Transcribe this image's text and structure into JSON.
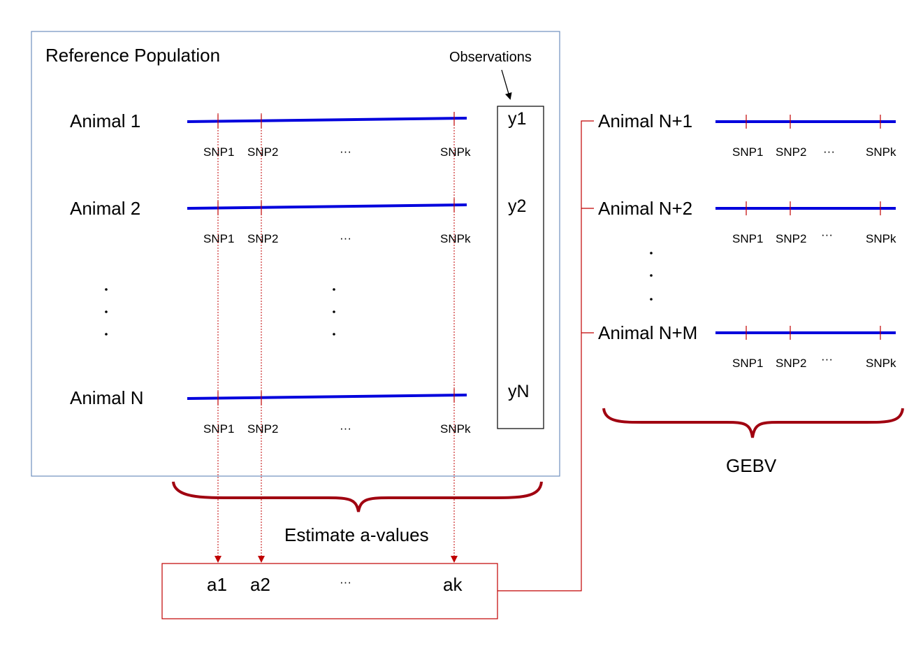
{
  "reference": {
    "title": "Reference Population",
    "observations_label": "Observations",
    "animals": [
      {
        "label": "Animal 1",
        "obs": "y1"
      },
      {
        "label": "Animal 2",
        "obs": "y2"
      },
      {
        "label": "Animal N",
        "obs": "yN"
      }
    ],
    "snp_labels": [
      "SNP1",
      "SNP2",
      "···",
      "SNPk"
    ]
  },
  "estimate_label": "Estimate a-values",
  "a_values": [
    "a1",
    "a2",
    "···",
    "ak"
  ],
  "candidates": {
    "animals": [
      "Animal N+1",
      "Animal N+2",
      "Animal N+M"
    ],
    "snp_labels": [
      "SNP1",
      "SNP2",
      "···",
      "SNPk"
    ]
  },
  "gebv_label": "GEBV",
  "colors": {
    "chromosome": "#0000dd",
    "snp_marker": "#c00000",
    "brace": "#a00010",
    "ref_box": "#6f8fbf"
  }
}
